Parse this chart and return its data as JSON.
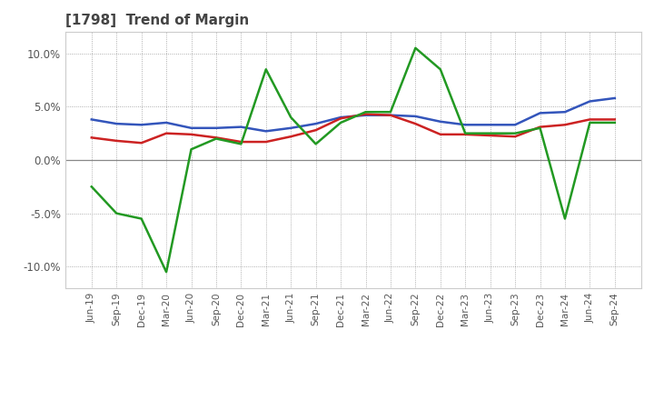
{
  "title": "[1798]  Trend of Margin",
  "x_labels": [
    "Jun-19",
    "Sep-19",
    "Dec-19",
    "Mar-20",
    "Jun-20",
    "Sep-20",
    "Dec-20",
    "Mar-21",
    "Jun-21",
    "Sep-21",
    "Dec-21",
    "Mar-22",
    "Jun-22",
    "Sep-22",
    "Dec-22",
    "Mar-23",
    "Jun-23",
    "Sep-23",
    "Dec-23",
    "Mar-24",
    "Jun-24",
    "Sep-24"
  ],
  "ordinary_income": [
    3.8,
    3.4,
    3.3,
    3.5,
    3.0,
    3.0,
    3.1,
    2.7,
    3.0,
    3.4,
    4.0,
    4.2,
    4.2,
    4.1,
    3.6,
    3.3,
    3.3,
    3.3,
    4.4,
    4.5,
    5.5,
    5.8
  ],
  "net_income": [
    2.1,
    1.8,
    1.6,
    2.5,
    2.4,
    2.1,
    1.7,
    1.7,
    2.2,
    2.8,
    3.9,
    4.3,
    4.2,
    3.4,
    2.4,
    2.4,
    2.3,
    2.2,
    3.1,
    3.3,
    3.8,
    3.8
  ],
  "operating_cashflow": [
    -2.5,
    -5.0,
    -5.5,
    -10.5,
    1.0,
    2.0,
    1.5,
    8.5,
    4.0,
    1.5,
    3.5,
    4.5,
    4.5,
    10.5,
    8.5,
    2.5,
    2.5,
    2.5,
    3.0,
    -5.5,
    3.5,
    3.5
  ],
  "ylim": [
    -12,
    12
  ],
  "yticks": [
    -10.0,
    -5.0,
    0.0,
    5.0,
    10.0
  ],
  "colors": {
    "ordinary_income": "#3355bb",
    "net_income": "#cc2222",
    "operating_cashflow": "#229922"
  },
  "background_color": "#ffffff",
  "grid_color": "#999999",
  "title_color": "#444444"
}
